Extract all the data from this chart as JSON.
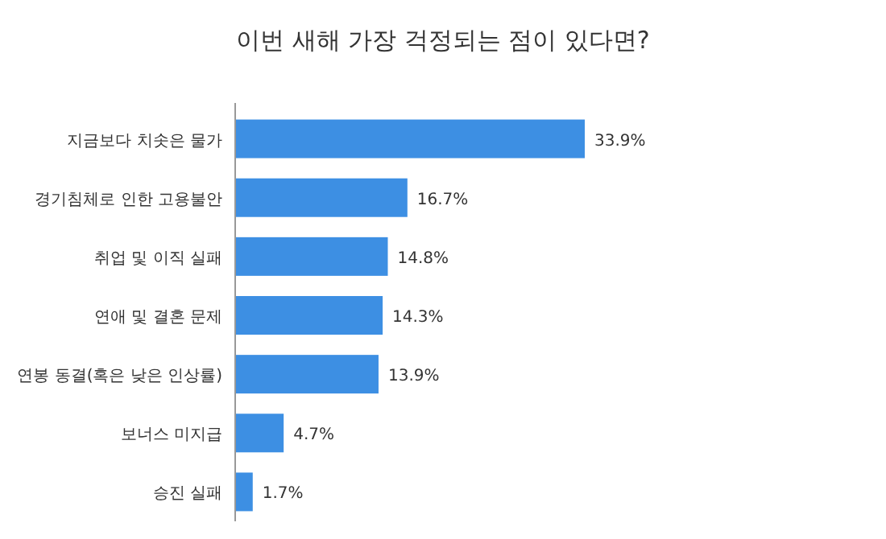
{
  "chart_data": {
    "type": "bar",
    "orientation": "horizontal",
    "title": "이번 새해 가장 걱정되는 점이 있다면?",
    "categories": [
      "지금보다 치솟은 물가",
      "경기침체로 인한 고용불안",
      "취업 및 이직 실패",
      "연애 및 결혼 문제",
      "연봉 동결(혹은 낮은 인상률)",
      "보너스 미지급",
      "승진 실패"
    ],
    "values": [
      33.9,
      16.7,
      14.8,
      14.3,
      13.9,
      4.7,
      1.7
    ],
    "value_labels": [
      "33.9%",
      "16.7%",
      "14.8%",
      "14.3%",
      "13.9%",
      "4.7%",
      "1.7%"
    ],
    "color": "#3d8fe3"
  }
}
